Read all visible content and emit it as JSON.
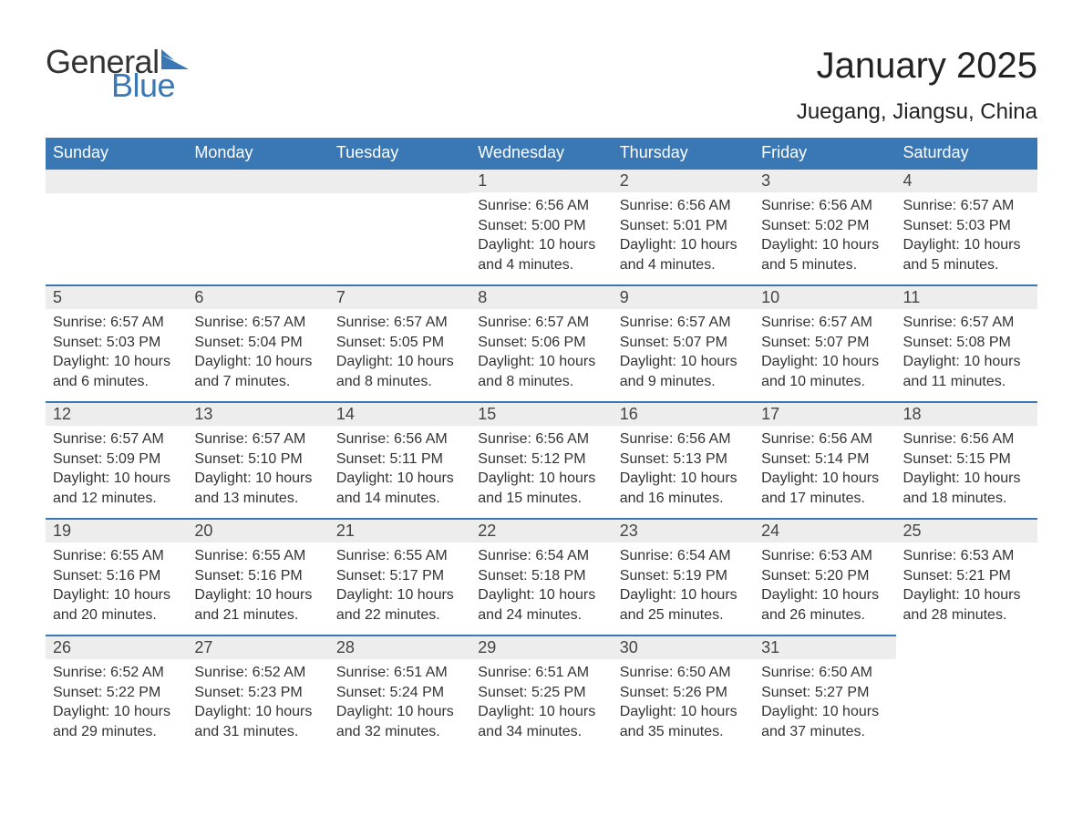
{
  "logo": {
    "text1": "General",
    "text2": "Blue",
    "triangle_color": "#3a78b5"
  },
  "header": {
    "month_title": "January 2025",
    "location": "Juegang, Jiangsu, China"
  },
  "colors": {
    "header_bg": "#3a78b5",
    "header_text": "#ffffff",
    "daynum_bg": "#ededed",
    "daynum_border": "#3a78b5",
    "body_text": "#333333",
    "page_bg": "#ffffff"
  },
  "typography": {
    "title_fontsize": 40,
    "location_fontsize": 24,
    "weekday_fontsize": 18,
    "daynum_fontsize": 18,
    "body_fontsize": 16,
    "font_family": "Arial"
  },
  "calendar": {
    "weekdays": [
      "Sunday",
      "Monday",
      "Tuesday",
      "Wednesday",
      "Thursday",
      "Friday",
      "Saturday"
    ],
    "leading_blanks": 3,
    "trailing_blanks": 1,
    "days": [
      {
        "n": 1,
        "sunrise": "6:56 AM",
        "sunset": "5:00 PM",
        "daylight": "10 hours and 4 minutes."
      },
      {
        "n": 2,
        "sunrise": "6:56 AM",
        "sunset": "5:01 PM",
        "daylight": "10 hours and 4 minutes."
      },
      {
        "n": 3,
        "sunrise": "6:56 AM",
        "sunset": "5:02 PM",
        "daylight": "10 hours and 5 minutes."
      },
      {
        "n": 4,
        "sunrise": "6:57 AM",
        "sunset": "5:03 PM",
        "daylight": "10 hours and 5 minutes."
      },
      {
        "n": 5,
        "sunrise": "6:57 AM",
        "sunset": "5:03 PM",
        "daylight": "10 hours and 6 minutes."
      },
      {
        "n": 6,
        "sunrise": "6:57 AM",
        "sunset": "5:04 PM",
        "daylight": "10 hours and 7 minutes."
      },
      {
        "n": 7,
        "sunrise": "6:57 AM",
        "sunset": "5:05 PM",
        "daylight": "10 hours and 8 minutes."
      },
      {
        "n": 8,
        "sunrise": "6:57 AM",
        "sunset": "5:06 PM",
        "daylight": "10 hours and 8 minutes."
      },
      {
        "n": 9,
        "sunrise": "6:57 AM",
        "sunset": "5:07 PM",
        "daylight": "10 hours and 9 minutes."
      },
      {
        "n": 10,
        "sunrise": "6:57 AM",
        "sunset": "5:07 PM",
        "daylight": "10 hours and 10 minutes."
      },
      {
        "n": 11,
        "sunrise": "6:57 AM",
        "sunset": "5:08 PM",
        "daylight": "10 hours and 11 minutes."
      },
      {
        "n": 12,
        "sunrise": "6:57 AM",
        "sunset": "5:09 PM",
        "daylight": "10 hours and 12 minutes."
      },
      {
        "n": 13,
        "sunrise": "6:57 AM",
        "sunset": "5:10 PM",
        "daylight": "10 hours and 13 minutes."
      },
      {
        "n": 14,
        "sunrise": "6:56 AM",
        "sunset": "5:11 PM",
        "daylight": "10 hours and 14 minutes."
      },
      {
        "n": 15,
        "sunrise": "6:56 AM",
        "sunset": "5:12 PM",
        "daylight": "10 hours and 15 minutes."
      },
      {
        "n": 16,
        "sunrise": "6:56 AM",
        "sunset": "5:13 PM",
        "daylight": "10 hours and 16 minutes."
      },
      {
        "n": 17,
        "sunrise": "6:56 AM",
        "sunset": "5:14 PM",
        "daylight": "10 hours and 17 minutes."
      },
      {
        "n": 18,
        "sunrise": "6:56 AM",
        "sunset": "5:15 PM",
        "daylight": "10 hours and 18 minutes."
      },
      {
        "n": 19,
        "sunrise": "6:55 AM",
        "sunset": "5:16 PM",
        "daylight": "10 hours and 20 minutes."
      },
      {
        "n": 20,
        "sunrise": "6:55 AM",
        "sunset": "5:16 PM",
        "daylight": "10 hours and 21 minutes."
      },
      {
        "n": 21,
        "sunrise": "6:55 AM",
        "sunset": "5:17 PM",
        "daylight": "10 hours and 22 minutes."
      },
      {
        "n": 22,
        "sunrise": "6:54 AM",
        "sunset": "5:18 PM",
        "daylight": "10 hours and 24 minutes."
      },
      {
        "n": 23,
        "sunrise": "6:54 AM",
        "sunset": "5:19 PM",
        "daylight": "10 hours and 25 minutes."
      },
      {
        "n": 24,
        "sunrise": "6:53 AM",
        "sunset": "5:20 PM",
        "daylight": "10 hours and 26 minutes."
      },
      {
        "n": 25,
        "sunrise": "6:53 AM",
        "sunset": "5:21 PM",
        "daylight": "10 hours and 28 minutes."
      },
      {
        "n": 26,
        "sunrise": "6:52 AM",
        "sunset": "5:22 PM",
        "daylight": "10 hours and 29 minutes."
      },
      {
        "n": 27,
        "sunrise": "6:52 AM",
        "sunset": "5:23 PM",
        "daylight": "10 hours and 31 minutes."
      },
      {
        "n": 28,
        "sunrise": "6:51 AM",
        "sunset": "5:24 PM",
        "daylight": "10 hours and 32 minutes."
      },
      {
        "n": 29,
        "sunrise": "6:51 AM",
        "sunset": "5:25 PM",
        "daylight": "10 hours and 34 minutes."
      },
      {
        "n": 30,
        "sunrise": "6:50 AM",
        "sunset": "5:26 PM",
        "daylight": "10 hours and 35 minutes."
      },
      {
        "n": 31,
        "sunrise": "6:50 AM",
        "sunset": "5:27 PM",
        "daylight": "10 hours and 37 minutes."
      }
    ],
    "labels": {
      "sunrise": "Sunrise: ",
      "sunset": "Sunset: ",
      "daylight": "Daylight: "
    }
  }
}
